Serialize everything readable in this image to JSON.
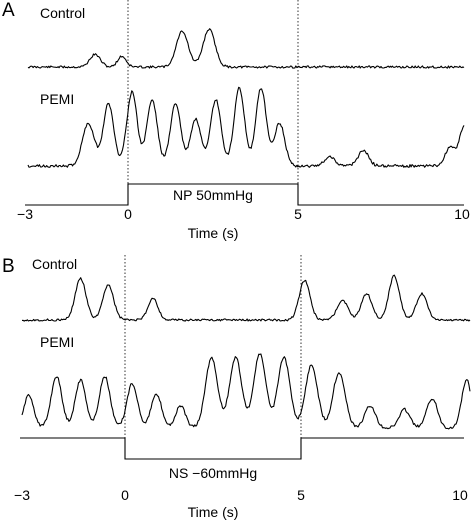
{
  "chart_data": [
    {
      "panel": "A",
      "type": "line",
      "xlabel": "Time (s)",
      "xticks": [
        -3,
        0,
        5,
        10
      ],
      "xticklabels": [
        "−3",
        "0",
        "5",
        "10"
      ],
      "xlim": [
        -3,
        10
      ],
      "markers": [
        0,
        5
      ],
      "stimulus": {
        "label": "NP 50mmHg",
        "start": 0,
        "end": 5
      },
      "series": [
        {
          "name": "Control",
          "peaks": [
            {
              "t": -1.0,
              "a": 0.35,
              "w": 0.22
            },
            {
              "t": -0.2,
              "a": 0.3,
              "w": 0.18
            },
            {
              "t": 1.6,
              "a": 1.0,
              "w": 0.25
            },
            {
              "t": 2.4,
              "a": 1.05,
              "w": 0.25
            }
          ]
        },
        {
          "name": "PEMI",
          "peaks": [
            {
              "t": -1.2,
              "a": 0.55,
              "w": 0.25
            },
            {
              "t": -0.6,
              "a": 0.8,
              "w": 0.22
            },
            {
              "t": 0.1,
              "a": 0.95,
              "w": 0.22
            },
            {
              "t": 0.7,
              "a": 0.85,
              "w": 0.22
            },
            {
              "t": 1.4,
              "a": 0.8,
              "w": 0.22
            },
            {
              "t": 2.0,
              "a": 0.6,
              "w": 0.22
            },
            {
              "t": 2.6,
              "a": 0.85,
              "w": 0.22
            },
            {
              "t": 3.3,
              "a": 1.0,
              "w": 0.22
            },
            {
              "t": 3.95,
              "a": 1.0,
              "w": 0.22
            },
            {
              "t": 4.5,
              "a": 0.55,
              "w": 0.22
            },
            {
              "t": 6.0,
              "a": 0.12,
              "w": 0.22
            },
            {
              "t": 7.0,
              "a": 0.2,
              "w": 0.22
            },
            {
              "t": 9.6,
              "a": 0.25,
              "w": 0.22
            },
            {
              "t": 10.0,
              "a": 0.5,
              "w": 0.18
            }
          ]
        }
      ]
    },
    {
      "panel": "B",
      "type": "line",
      "xlabel": "Time (s)",
      "xticks": [
        -3,
        0,
        5,
        10
      ],
      "xticklabels": [
        "−3",
        "0",
        "5",
        "10"
      ],
      "xlim": [
        -3,
        10
      ],
      "markers": [
        0,
        5
      ],
      "stimulus": {
        "label": "NS −60mmHg",
        "start": 0,
        "end": 5
      },
      "series": [
        {
          "name": "Control",
          "peaks": [
            {
              "t": -1.3,
              "a": 0.95,
              "w": 0.22
            },
            {
              "t": -0.5,
              "a": 0.8,
              "w": 0.22
            },
            {
              "t": 0.8,
              "a": 0.5,
              "w": 0.2
            },
            {
              "t": 5.2,
              "a": 0.9,
              "w": 0.22
            },
            {
              "t": 6.3,
              "a": 0.45,
              "w": 0.22
            },
            {
              "t": 7.0,
              "a": 0.6,
              "w": 0.22
            },
            {
              "t": 7.8,
              "a": 1.0,
              "w": 0.22
            },
            {
              "t": 8.6,
              "a": 0.6,
              "w": 0.22
            }
          ]
        },
        {
          "name": "PEMI",
          "peaks": [
            {
              "t": -2.8,
              "a": 0.45,
              "w": 0.2
            },
            {
              "t": -2.0,
              "a": 0.7,
              "w": 0.22
            },
            {
              "t": -1.3,
              "a": 0.65,
              "w": 0.22
            },
            {
              "t": -0.6,
              "a": 0.7,
              "w": 0.22
            },
            {
              "t": 0.2,
              "a": 0.6,
              "w": 0.22
            },
            {
              "t": 0.9,
              "a": 0.45,
              "w": 0.22
            },
            {
              "t": 1.6,
              "a": 0.3,
              "w": 0.2
            },
            {
              "t": 2.5,
              "a": 0.95,
              "w": 0.25
            },
            {
              "t": 3.2,
              "a": 0.95,
              "w": 0.25
            },
            {
              "t": 3.9,
              "a": 1.0,
              "w": 0.25
            },
            {
              "t": 4.6,
              "a": 0.95,
              "w": 0.25
            },
            {
              "t": 5.4,
              "a": 0.85,
              "w": 0.25
            },
            {
              "t": 6.2,
              "a": 0.75,
              "w": 0.25
            },
            {
              "t": 7.1,
              "a": 0.3,
              "w": 0.22
            },
            {
              "t": 8.1,
              "a": 0.25,
              "w": 0.22
            },
            {
              "t": 8.9,
              "a": 0.4,
              "w": 0.22
            },
            {
              "t": 9.9,
              "a": 0.65,
              "w": 0.2
            }
          ]
        }
      ]
    }
  ]
}
